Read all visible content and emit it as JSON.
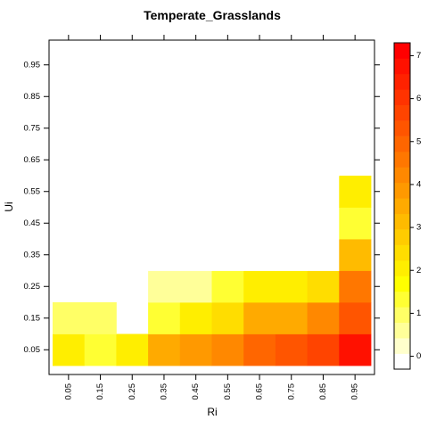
{
  "chart_data": {
    "type": "heatmap",
    "title": "Temperate_Grasslands",
    "xlabel": "Ri",
    "ylabel": "Ui",
    "x": [
      "0.05",
      "0.15",
      "0.25",
      "0.35",
      "0.45",
      "0.55",
      "0.65",
      "0.75",
      "0.85",
      "0.95"
    ],
    "y": [
      "0.05",
      "0.15",
      "0.25",
      "0.35",
      "0.45",
      "0.55",
      "0.65",
      "0.75",
      "0.85",
      "0.95"
    ],
    "xlim": [
      0,
      1
    ],
    "ylim": [
      0,
      1
    ],
    "values": [
      [
        2.0,
        1.2,
        2.0,
        3.4,
        3.8,
        4.4,
        4.8,
        5.2,
        5.6,
        6.8
      ],
      [
        1.0,
        1.0,
        null,
        1.2,
        2.0,
        2.5,
        3.4,
        3.6,
        4.2,
        5.4
      ],
      [
        null,
        null,
        null,
        0.7,
        0.7,
        1.2,
        2.0,
        2.0,
        2.5,
        4.6
      ],
      [
        null,
        null,
        null,
        0.05,
        0.05,
        0.05,
        0.05,
        0.05,
        0.05,
        3.0
      ],
      [
        null,
        null,
        null,
        null,
        null,
        null,
        0.05,
        0.05,
        0.05,
        1.2
      ],
      [
        null,
        null,
        null,
        null,
        null,
        0.05,
        null,
        null,
        null,
        2.0
      ],
      [
        null,
        null,
        null,
        null,
        null,
        null,
        null,
        0.05,
        0.05,
        null
      ],
      [
        null,
        null,
        null,
        null,
        null,
        null,
        null,
        null,
        null,
        0.05
      ],
      [
        null,
        null,
        null,
        null,
        null,
        null,
        null,
        null,
        null,
        0.05
      ],
      [
        null,
        null,
        null,
        null,
        null,
        null,
        null,
        null,
        null,
        null
      ]
    ],
    "colorbar": {
      "min": -0.3,
      "max": 7.3,
      "ticks": [
        0,
        1,
        2,
        3,
        4,
        5,
        6,
        7
      ],
      "colors": [
        "#ffffff",
        "#ffffcc",
        "#ffff99",
        "#ffff66",
        "#ffff33",
        "#ffff00",
        "#ffee00",
        "#ffdd00",
        "#ffcc00",
        "#ffbb00",
        "#ffaa00",
        "#ff9900",
        "#ff8800",
        "#ff7700",
        "#ff6600",
        "#ff5500",
        "#ff4400",
        "#ff3300",
        "#ff2200",
        "#ff1100",
        "#ff0000"
      ]
    }
  }
}
